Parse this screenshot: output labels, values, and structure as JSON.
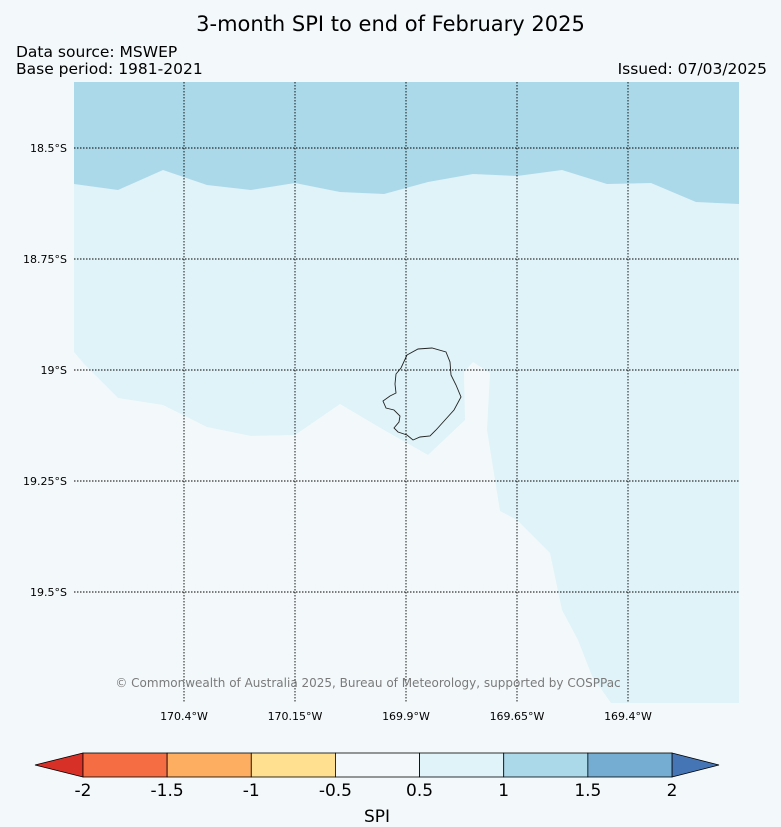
{
  "title": "3-month SPI to end of February 2025",
  "meta": {
    "source": "Data source: MSWEP",
    "base_period": "Base period: 1981-2021",
    "issued": "Issued: 07/03/2025"
  },
  "map": {
    "region": "Niue",
    "lat_labels": [
      "18.5°S",
      "18.75°S",
      "19°S",
      "19.25°S",
      "19.5°S"
    ],
    "lon_labels": [
      "170.4°W",
      "170.15°W",
      "169.9°W",
      "169.65°W",
      "169.4°W"
    ],
    "copyright": "© Commonwealth of Australia 2025, Bureau of Meteorology, supported by COSPPac",
    "class_colors": {
      "spi_0_5_to_1": "#e0f3f8",
      "spi_1_to_1_5": "#abd9e9",
      "spi_minus_0_5_to_0_5": "#f3f9fb"
    }
  },
  "colorbar": {
    "label": "SPI",
    "ticks": [
      "-2",
      "-1.5",
      "-1",
      "-0.5",
      "0.5",
      "1",
      "1.5",
      "2"
    ],
    "under_color": "#d73027",
    "over_color": "#4575b4",
    "colors": [
      "#f46d43",
      "#fdae61",
      "#fee090",
      "#f3f9fb",
      "#e0f3f8",
      "#abd9e9",
      "#74add1"
    ]
  }
}
